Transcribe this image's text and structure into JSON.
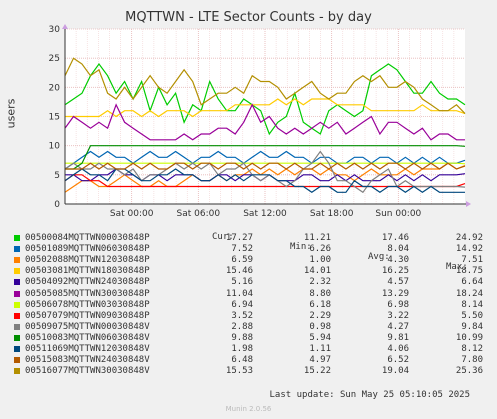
{
  "title": "MQTTWN - LTE Sector Counts - by day",
  "watermark": "RRDTOOL / TOBI OETIKER",
  "version": "Munin 2.0.56",
  "last_update": "Last update: Sun May 25 05:10:05 2025",
  "legend_headers": {
    "cur": "Cur:",
    "min": "Min:",
    "avg": "Avg:",
    "max": "Max:"
  },
  "chart_data": {
    "type": "line",
    "ylabel": "users",
    "xlabel": "",
    "ylim": [
      0,
      30
    ],
    "yticks": [
      0,
      5,
      10,
      15,
      20,
      25,
      30
    ],
    "x_range_hours": [
      0,
      36
    ],
    "xticks": [
      {
        "label": "Sat 00:00",
        "hour": 6
      },
      {
        "label": "Sat 06:00",
        "hour": 12
      },
      {
        "label": "Sat 12:00",
        "hour": 18
      },
      {
        "label": "Sat 18:00",
        "hour": 24
      },
      {
        "label": "Sun 00:00",
        "hour": 30
      }
    ],
    "grid": true,
    "series": [
      {
        "name": "00500084MQTTWN00030848P",
        "color": "#00cc00",
        "cur": "17.27",
        "min": "11.21",
        "avg": "17.46",
        "max": "24.92",
        "values": [
          17,
          18,
          19,
          22,
          24,
          22,
          19,
          21,
          18,
          21,
          16,
          20,
          17,
          19,
          14,
          17,
          16,
          21,
          18,
          16,
          16,
          18,
          17,
          16,
          12,
          14,
          15,
          19,
          14,
          13,
          12,
          16,
          17,
          16,
          15,
          16,
          22,
          23,
          24,
          23,
          21,
          19,
          19,
          21,
          19,
          18,
          18,
          17
        ]
      },
      {
        "name": "00501089MQTTWN06030848P",
        "color": "#0066b3",
        "cur": "7.52",
        "min": "6.26",
        "avg": "8.04",
        "max": "14.92",
        "values": [
          6,
          7,
          8,
          9,
          8,
          9,
          8,
          8,
          7,
          8,
          9,
          8,
          8,
          9,
          8,
          7,
          8,
          8,
          9,
          8,
          8,
          7,
          8,
          9,
          8,
          8,
          9,
          8,
          8,
          7,
          8,
          8,
          7,
          7,
          8,
          8,
          7,
          8,
          8,
          7,
          8,
          7,
          8,
          7,
          8,
          7,
          7,
          7.5
        ]
      },
      {
        "name": "00502088MQTTWN12030848P",
        "color": "#ff8000",
        "cur": "6.59",
        "min": "1.00",
        "avg": "4.30",
        "max": "7.51",
        "values": [
          2,
          3,
          4,
          4,
          3,
          3,
          4,
          5,
          4,
          3,
          3,
          4,
          3,
          3,
          4,
          5,
          4,
          4,
          5,
          4,
          5,
          5,
          6,
          5,
          6,
          5,
          6,
          5,
          6,
          6,
          5,
          6,
          5,
          5,
          4,
          5,
          6,
          5,
          5,
          5,
          6,
          5,
          6,
          6,
          6,
          7,
          6,
          6.6
        ]
      },
      {
        "name": "00503081MQTTWN18030848P",
        "color": "#ffcc00",
        "cur": "15.46",
        "min": "14.01",
        "avg": "16.25",
        "max": "18.75",
        "values": [
          15,
          15,
          15,
          15,
          15,
          16,
          15,
          16,
          16,
          15,
          16,
          15,
          16,
          16,
          16,
          15,
          16,
          16,
          16,
          16,
          17,
          17,
          17,
          17,
          17,
          18,
          17,
          18,
          17,
          18,
          18,
          18,
          17,
          17,
          17,
          17,
          16,
          16,
          16,
          16,
          16,
          16,
          17,
          16,
          16,
          16,
          16,
          15.5
        ]
      },
      {
        "name": "00504092MQTTWN24030848P",
        "color": "#330099",
        "cur": "5.16",
        "min": "2.32",
        "avg": "4.57",
        "max": "6.64",
        "values": [
          5,
          5,
          4,
          4,
          5,
          5,
          6,
          5,
          5,
          4,
          5,
          5,
          4,
          5,
          5,
          5,
          4,
          4,
          5,
          5,
          4,
          5,
          5,
          4,
          5,
          4,
          4,
          4,
          5,
          5,
          4,
          4,
          5,
          4,
          5,
          4,
          4,
          4,
          5,
          4,
          5,
          4,
          5,
          4,
          5,
          5,
          5,
          5.2
        ]
      },
      {
        "name": "00505085MQTTWN30030848P",
        "color": "#990099",
        "cur": "11.04",
        "min": "8.80",
        "avg": "13.29",
        "max": "18.24",
        "values": [
          13,
          15,
          14,
          13,
          14,
          13,
          17,
          14,
          13,
          12,
          11,
          11,
          11,
          11,
          12,
          11,
          12,
          12,
          13,
          13,
          12,
          14,
          17,
          14,
          15,
          13,
          12,
          13,
          12,
          13,
          14,
          13,
          14,
          12,
          13,
          14,
          15,
          12,
          14,
          14,
          13,
          12,
          13,
          11,
          12,
          12,
          11,
          11
        ]
      },
      {
        "name": "00506078MQTTWN03030848P",
        "color": "#ccff00",
        "cur": "6.94",
        "min": "6.18",
        "avg": "6.98",
        "max": "8.14",
        "values": [
          7,
          7,
          7,
          7,
          7,
          7,
          7,
          7,
          7,
          7,
          7,
          7,
          7,
          7,
          7,
          7,
          7,
          7,
          7,
          7,
          7,
          7,
          7,
          7,
          7,
          7,
          7,
          7,
          7,
          7,
          7,
          7,
          7,
          7,
          7,
          7,
          7,
          7,
          7,
          7,
          7,
          7,
          7,
          7,
          7,
          7,
          7,
          6.9
        ]
      },
      {
        "name": "00507079MQTTWN09030848P",
        "color": "#ff0000",
        "cur": "3.52",
        "min": "2.29",
        "avg": "3.22",
        "max": "5.50",
        "values": [
          4,
          5,
          5,
          4,
          4,
          3,
          3,
          3,
          3,
          3,
          3,
          3,
          3,
          3,
          3,
          3,
          3,
          3,
          3,
          3,
          3,
          3,
          3,
          3,
          3,
          3,
          3,
          3,
          3,
          3,
          3,
          3,
          3,
          3,
          3,
          3,
          3,
          3,
          3,
          3,
          3,
          3,
          3,
          3,
          3,
          3,
          3,
          3.5
        ]
      },
      {
        "name": "00509075MQTTWN00030848V",
        "color": "#808080",
        "cur": "2.88",
        "min": "0.98",
        "avg": "4.27",
        "max": "9.84",
        "values": [
          6,
          7,
          6,
          6,
          7,
          6,
          6,
          5,
          6,
          4,
          5,
          5,
          6,
          7,
          6,
          7,
          6,
          7,
          5,
          6,
          6,
          7,
          5,
          4,
          5,
          4,
          3,
          4,
          6,
          7,
          9,
          7,
          4,
          4,
          3,
          2,
          4,
          5,
          6,
          3,
          4,
          3,
          3,
          3,
          3,
          3,
          3,
          2.9
        ]
      },
      {
        "name": "00510083MQTTWN06030848V",
        "color": "#008f00",
        "cur": "9.88",
        "min": "5.94",
        "avg": "9.81",
        "max": "10.99",
        "values": [
          6,
          6,
          7,
          10,
          10,
          10,
          10,
          10,
          10,
          10,
          10,
          10,
          10,
          10,
          10,
          10,
          10,
          10,
          10,
          10,
          10,
          10,
          10,
          10,
          10,
          10,
          10,
          10,
          10,
          10,
          10,
          10,
          10,
          10,
          10,
          10,
          10,
          10,
          10,
          10,
          10,
          10,
          10,
          10,
          10,
          10,
          10,
          9.9
        ]
      },
      {
        "name": "00511069MQTTWN12030848V",
        "color": "#00487d",
        "cur": "1.98",
        "min": "1.11",
        "avg": "4.06",
        "max": "8.12",
        "values": [
          4,
          5,
          6,
          5,
          5,
          4,
          6,
          6,
          5,
          4,
          4,
          5,
          5,
          6,
          5,
          5,
          4,
          4,
          5,
          4,
          5,
          4,
          5,
          5,
          5,
          4,
          4,
          3,
          3,
          2,
          3,
          3,
          2,
          2,
          4,
          3,
          3,
          2,
          3,
          3,
          2,
          3,
          2,
          3,
          2,
          2,
          2,
          2
        ]
      },
      {
        "name": "00515083MQTTWN24030848V",
        "color": "#b35a00",
        "cur": "6.48",
        "min": "4.97",
        "avg": "6.52",
        "max": "7.80",
        "values": [
          6,
          6,
          6,
          7,
          6,
          7,
          6,
          6,
          7,
          6,
          7,
          6,
          6,
          7,
          7,
          6,
          7,
          7,
          6,
          7,
          7,
          6,
          7,
          6,
          7,
          7,
          6,
          7,
          6,
          6,
          7,
          6,
          7,
          6,
          7,
          6,
          7,
          6,
          7,
          7,
          6,
          7,
          6,
          7,
          6,
          7,
          6,
          6.5
        ]
      },
      {
        "name": "00516077MQTTWN30030848V",
        "color": "#b38f00",
        "cur": "15.53",
        "min": "15.22",
        "avg": "19.04",
        "max": "25.36",
        "values": [
          22,
          25,
          24,
          22,
          23,
          19,
          18,
          20,
          18,
          20,
          22,
          20,
          19,
          21,
          23,
          21,
          17,
          18,
          19,
          19,
          20,
          19,
          22,
          21,
          21,
          20,
          18,
          19,
          20,
          21,
          19,
          18,
          19,
          19,
          21,
          22,
          21,
          22,
          20,
          20,
          21,
          20,
          18,
          17,
          16,
          16,
          17,
          15.5
        ]
      }
    ]
  }
}
